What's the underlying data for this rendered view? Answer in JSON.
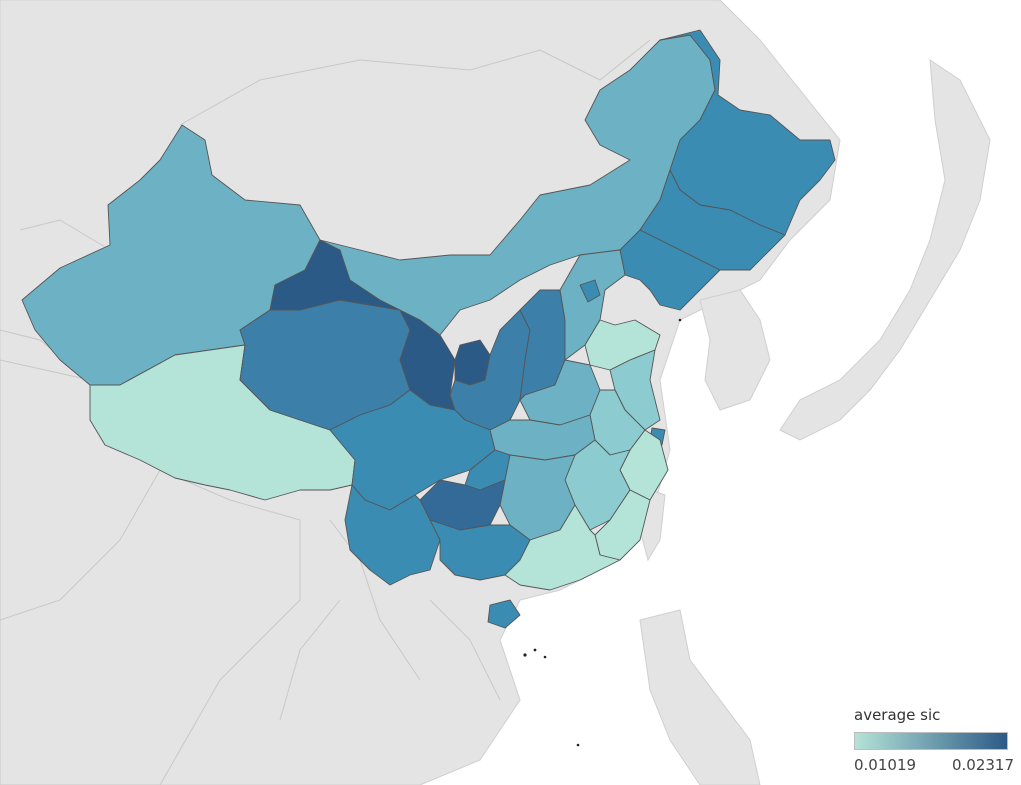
{
  "legend": {
    "title": "average sic",
    "min_label": "0.01019",
    "max_label": "0.02317",
    "min_value": 0.01019,
    "max_value": 0.02317,
    "color_low": "#b4e3d8",
    "color_high": "#2d5a86"
  },
  "colors": {
    "land": "#e4e4e4",
    "sea": "#ffffff",
    "border_country": "#c8c8c8",
    "border_province": "#555555"
  }
}
